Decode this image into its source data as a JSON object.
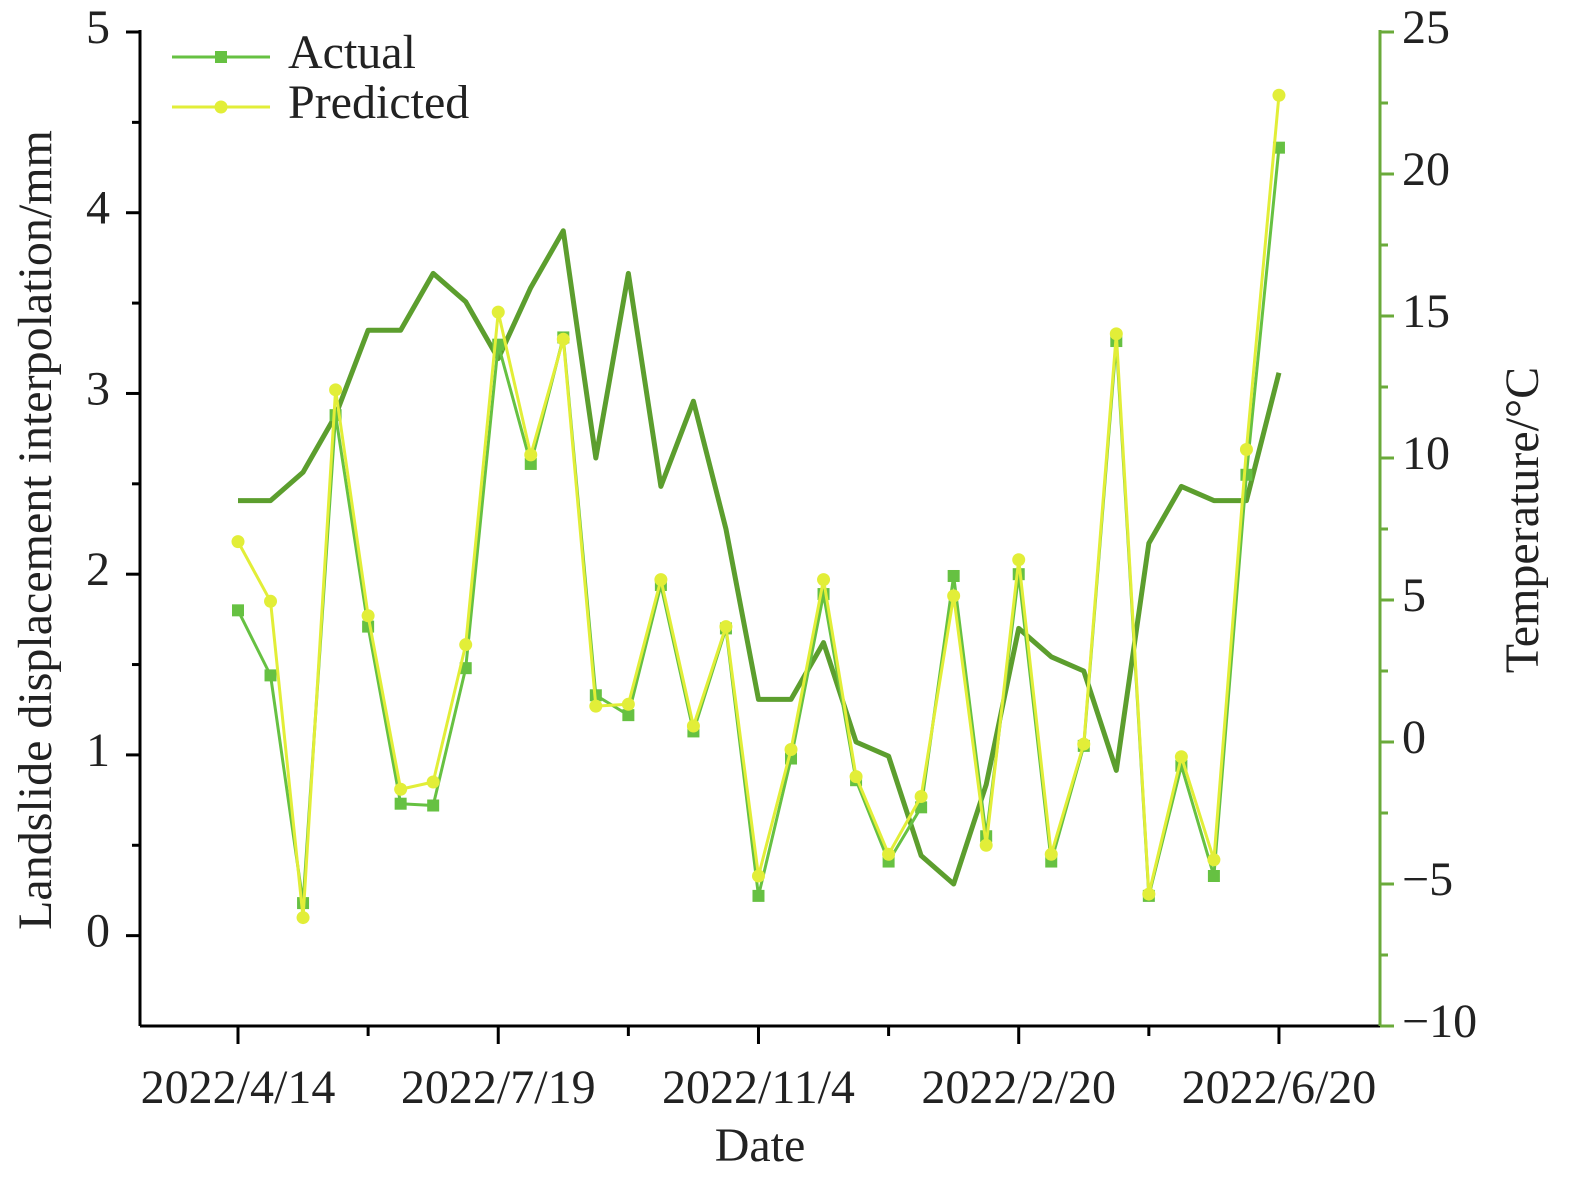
{
  "chart_data": {
    "type": "line",
    "x_label": "Date",
    "y_label": "Landslide displacement interpolation/mm",
    "y2_label": "Temperature/°C",
    "categories": [
      "2022/4/14",
      null,
      null,
      null,
      null,
      null,
      null,
      null,
      "2022/7/19",
      null,
      null,
      null,
      null,
      null,
      null,
      null,
      "2022/11/4",
      null,
      null,
      null,
      null,
      null,
      null,
      null,
      "2022/2/20",
      null,
      null,
      null,
      null,
      null,
      null,
      null,
      "2022/6/20"
    ],
    "series": [
      {
        "name": "Actual",
        "color": "#66c142",
        "marker": "square",
        "values": [
          1.8,
          1.44,
          0.18,
          2.88,
          1.71,
          0.73,
          0.72,
          1.48,
          3.27,
          2.61,
          3.31,
          1.33,
          1.22,
          1.94,
          1.13,
          1.7,
          0.22,
          0.98,
          1.89,
          0.86,
          0.41,
          0.71,
          1.99,
          0.55,
          2.0,
          0.41,
          1.05,
          3.29,
          0.22,
          0.94,
          0.33,
          2.55,
          4.36
        ]
      },
      {
        "name": "Predicted",
        "color": "#e2ee38",
        "marker": "circle",
        "values": [
          2.18,
          1.85,
          0.1,
          3.02,
          1.77,
          0.81,
          0.85,
          1.61,
          3.45,
          2.66,
          3.3,
          1.27,
          1.28,
          1.97,
          1.16,
          1.71,
          0.33,
          1.03,
          1.97,
          0.88,
          0.45,
          0.77,
          1.88,
          0.5,
          2.08,
          0.45,
          1.06,
          3.33,
          0.23,
          0.99,
          0.42,
          2.69,
          4.65
        ]
      },
      {
        "color": "#5c9e2e",
        "axis": "y2",
        "values": [
          8.5,
          8.5,
          9.5,
          11.5,
          14.5,
          14.5,
          16.5,
          15.5,
          13.5,
          16.0,
          18.0,
          10.0,
          16.5,
          9.0,
          12.0,
          7.5,
          1.5,
          1.5,
          3.5,
          0,
          -0.5,
          -4.0,
          -5.0,
          -1.5,
          4.0,
          3.0,
          2.5,
          -1.0,
          7.0,
          9.0,
          8.5,
          8.5,
          13.0
        ]
      }
    ],
    "ylim": [
      -0.5,
      5
    ],
    "yticks": [
      0,
      1,
      2,
      3,
      4,
      5
    ],
    "y2lim": [
      -10,
      25
    ],
    "y2ticks": [
      {
        "value": -10,
        "label": "−10"
      },
      {
        "value": -5,
        "label": "−5"
      },
      0,
      5,
      10,
      15,
      20,
      25
    ],
    "y2_color": "#6aaa3a",
    "legend": "upper left"
  }
}
